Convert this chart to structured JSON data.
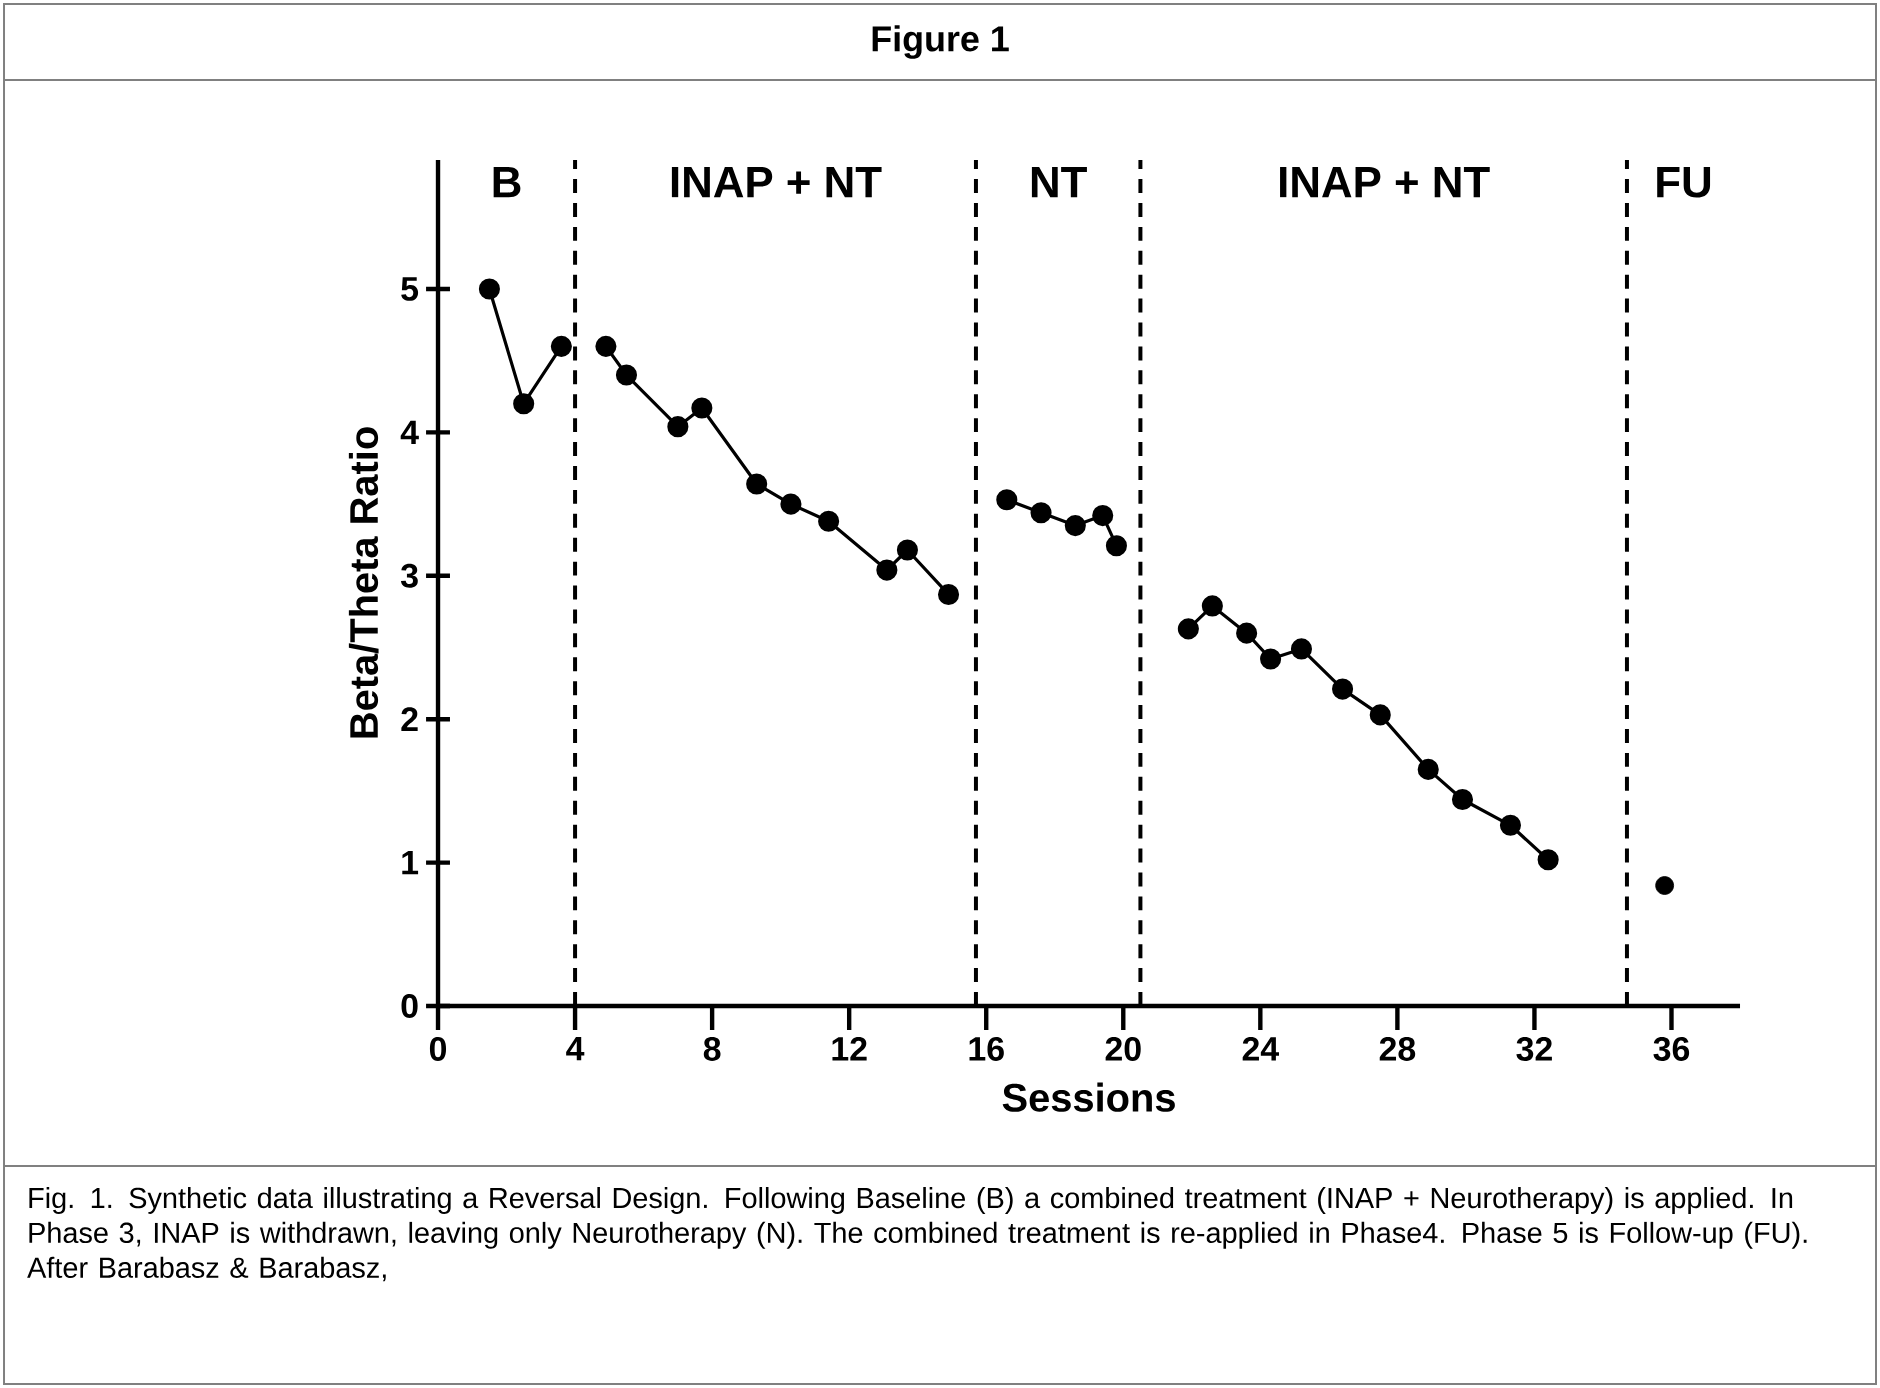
{
  "chart_data": {
    "type": "line",
    "title": "Figure 1",
    "xlabel": "Sessions",
    "ylabel": "Beta/Theta Ratio",
    "xlim": [
      0,
      38
    ],
    "ylim": [
      0,
      5.9
    ],
    "xticks": [
      0,
      4,
      8,
      12,
      16,
      20,
      24,
      28,
      32,
      36
    ],
    "yticks": [
      0,
      1,
      2,
      3,
      4,
      5
    ],
    "marker": "circle",
    "line_style": "solid",
    "series": [
      {
        "color": "#000000",
        "x": [
          1.5,
          2.5,
          3.6
        ],
        "values": [
          5.0,
          4.2,
          4.6
        ]
      },
      {
        "color": "#000000",
        "x": [
          4.9,
          5.5,
          7.0,
          7.7,
          9.3,
          10.3,
          11.4,
          13.1,
          13.7,
          14.9
        ],
        "values": [
          4.6,
          4.4,
          4.04,
          4.17,
          3.64,
          3.5,
          3.38,
          3.04,
          3.18,
          2.87
        ]
      },
      {
        "color": "#000000",
        "x": [
          16.6,
          17.6,
          18.6,
          19.4,
          19.8
        ],
        "values": [
          3.53,
          3.44,
          3.35,
          3.42,
          3.21
        ]
      },
      {
        "color": "#000000",
        "x": [
          21.9,
          22.6,
          23.6,
          24.3,
          25.2,
          26.4,
          27.5,
          28.9,
          29.9,
          31.3,
          32.4
        ],
        "values": [
          2.63,
          2.79,
          2.6,
          2.42,
          2.49,
          2.21,
          2.03,
          1.65,
          1.44,
          1.26,
          1.02
        ]
      },
      {
        "color": "#000000",
        "type": "scatter",
        "x": [
          35.8
        ],
        "values": [
          0.84
        ]
      }
    ],
    "ref_lines": [
      {
        "axis": "x",
        "value": 4,
        "line_style": "dashed"
      },
      {
        "axis": "x",
        "value": 15.7,
        "line_style": "dashed"
      },
      {
        "axis": "x",
        "value": 20.5,
        "line_style": "dashed"
      },
      {
        "axis": "x",
        "value": 34.7,
        "line_style": "dashed"
      }
    ],
    "annotations": [
      "B",
      "INAP + NT",
      "NT",
      "INAP + NT",
      "FU",
      "Fig. 1. Synthetic data illustrating a Reversal Design.  Following Baseline (B) a combined treatment (INAP + Neurotherapy) is applied.  In Phase 3, INAP is withdrawn, leaving only Neurotherapy (N).  The combined treatment is re-applied in Phase4.  Phase 5 is Follow-up (FU). After Barabasz & Barabasz,"
    ]
  }
}
